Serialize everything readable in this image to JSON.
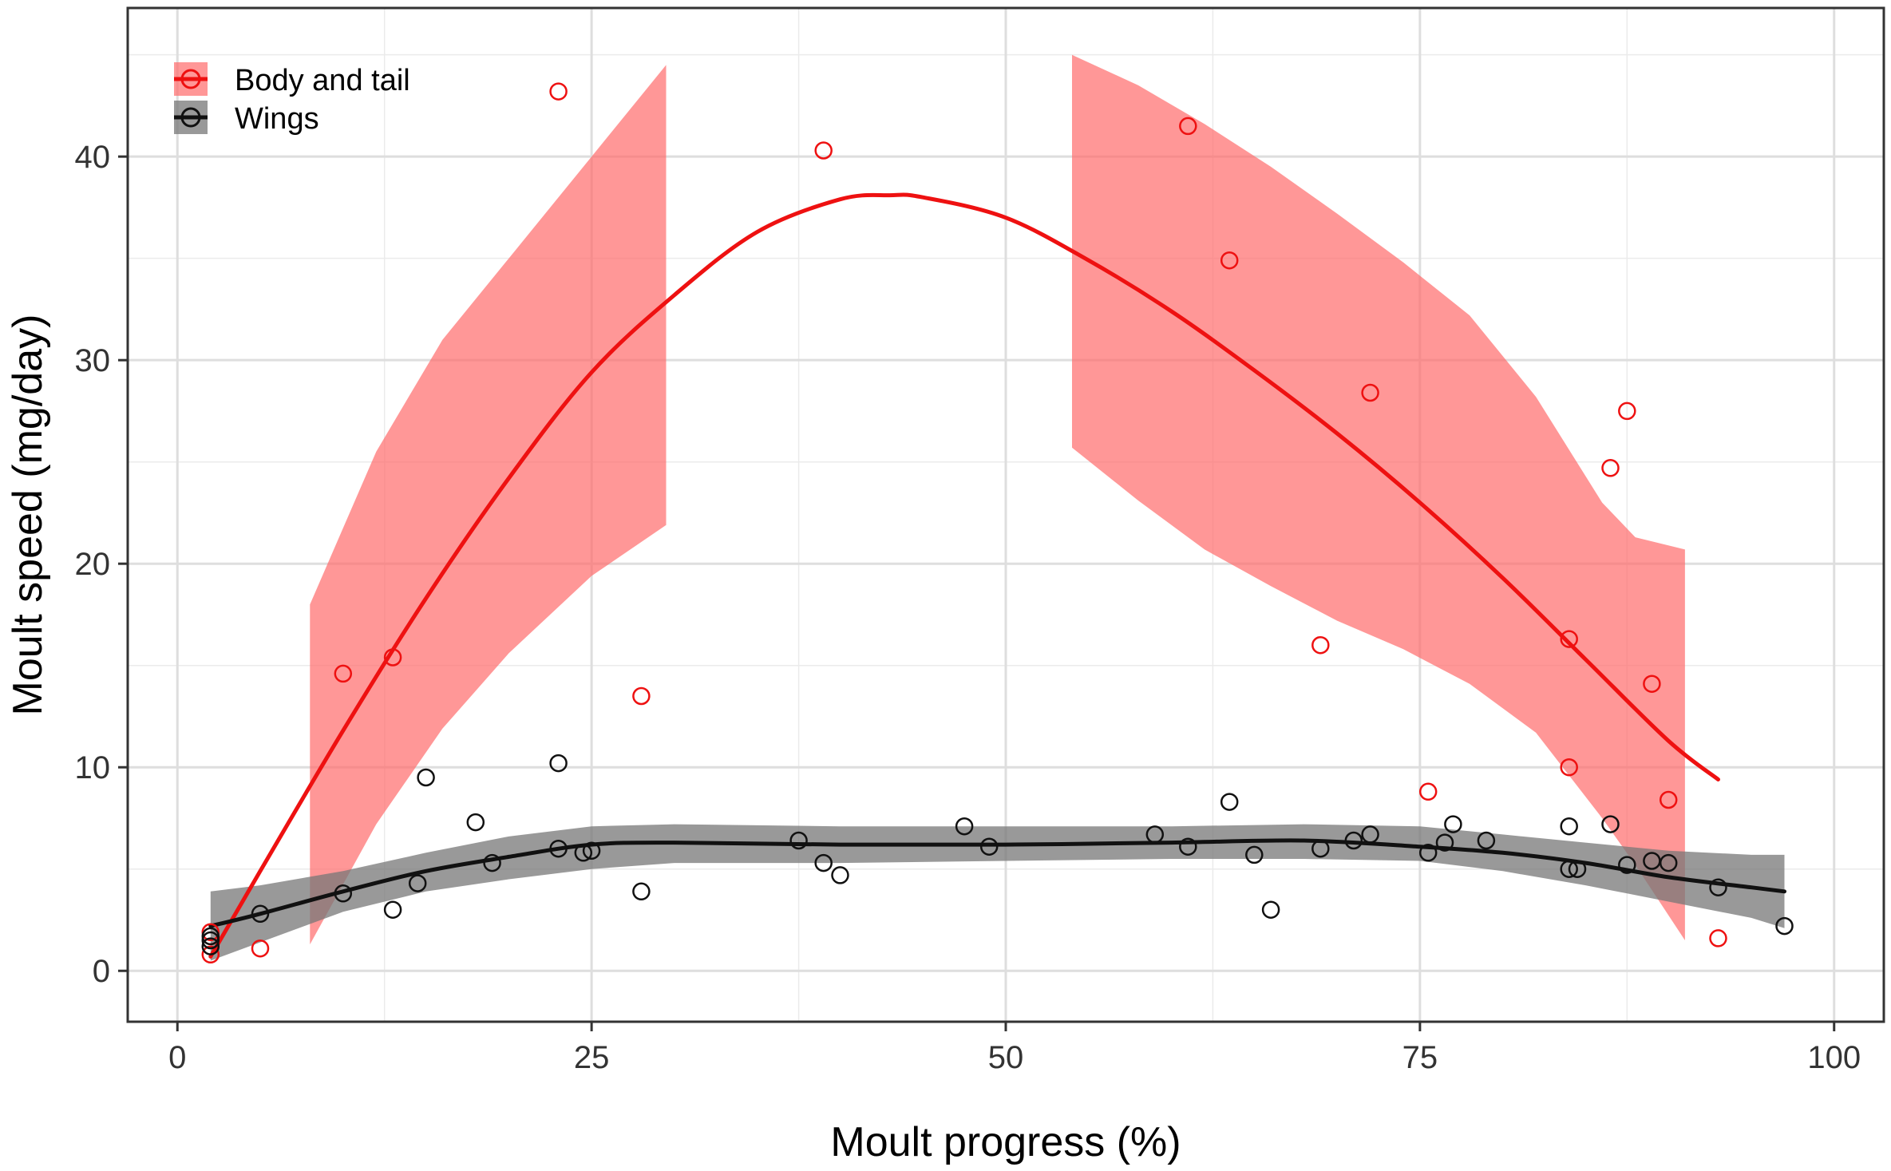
{
  "chart_data": {
    "type": "scatter",
    "xlabel": "Moult progress (%)",
    "ylabel": "Moult speed (mg/day)",
    "xlim": [
      -3,
      103
    ],
    "ylim": [
      -2.5,
      47.3
    ],
    "x_ticks": [
      0,
      25,
      50,
      75,
      100
    ],
    "y_ticks": [
      0,
      10,
      20,
      30,
      40
    ],
    "x_tick_labels": [
      "0",
      "25",
      "50",
      "75",
      "100"
    ],
    "y_tick_labels": [
      "0",
      "10",
      "20",
      "30",
      "40"
    ],
    "grid": true,
    "legend_position": "top-left",
    "series": [
      {
        "name": "Body and tail",
        "color": "#ee1111",
        "ribbon_color": "#ff6b6b",
        "points": [
          [
            2,
            0.8
          ],
          [
            2,
            1.9
          ],
          [
            5,
            1.1
          ],
          [
            10,
            14.6
          ],
          [
            13,
            15.4
          ],
          [
            23,
            43.2
          ],
          [
            28,
            13.5
          ],
          [
            39,
            40.3
          ],
          [
            61,
            41.5
          ],
          [
            63.5,
            34.9
          ],
          [
            69,
            16
          ],
          [
            72,
            28.4
          ],
          [
            75.5,
            8.8
          ],
          [
            84,
            16.3
          ],
          [
            84,
            10
          ],
          [
            86.5,
            24.7
          ],
          [
            87.5,
            27.5
          ],
          [
            89,
            14.1
          ],
          [
            90,
            8.4
          ],
          [
            93,
            1.6
          ]
        ],
        "fit": [
          [
            2,
            0.7
          ],
          [
            5,
            4.9
          ],
          [
            10,
            11.8
          ],
          [
            15,
            18.3
          ],
          [
            20,
            24.2
          ],
          [
            25,
            29.4
          ],
          [
            30,
            33.2
          ],
          [
            35,
            36.3
          ],
          [
            40,
            37.9
          ],
          [
            43,
            38.1
          ],
          [
            45,
            38
          ],
          [
            50,
            37
          ],
          [
            55,
            34.9
          ],
          [
            60,
            32.4
          ],
          [
            65,
            29.5
          ],
          [
            70,
            26.4
          ],
          [
            75,
            23
          ],
          [
            80,
            19.3
          ],
          [
            85,
            15.3
          ],
          [
            90,
            11.3
          ],
          [
            93,
            9.4
          ]
        ],
        "ribbons": [
          {
            "x": [
              8,
              12,
              16,
              20,
              25,
              29.5
            ],
            "lower": [
              1.3,
              7.2,
              11.9,
              15.6,
              19.4,
              21.9
            ],
            "upper": [
              18,
              25.5,
              31,
              35,
              40,
              44.5
            ]
          },
          {
            "x": [
              54,
              58,
              62,
              66,
              70,
              74,
              78,
              82,
              86,
              88,
              91
            ],
            "lower": [
              25.7,
              23.1,
              20.7,
              18.9,
              17.2,
              15.8,
              14.1,
              11.7,
              7.5,
              5.2,
              1.5
            ],
            "upper": [
              45,
              43.5,
              41.6,
              39.5,
              37.2,
              34.8,
              32.2,
              28.2,
              23,
              21.3,
              20.7
            ]
          }
        ]
      },
      {
        "name": "Wings",
        "color": "#111111",
        "ribbon_color": "#777777",
        "points": [
          [
            2,
            1.2
          ],
          [
            2,
            1.5
          ],
          [
            2,
            1.7
          ],
          [
            5,
            2.8
          ],
          [
            10,
            3.8
          ],
          [
            13,
            3
          ],
          [
            14.5,
            4.3
          ],
          [
            15,
            9.5
          ],
          [
            18,
            7.3
          ],
          [
            19,
            5.3
          ],
          [
            23,
            10.2
          ],
          [
            23,
            6
          ],
          [
            24.5,
            5.8
          ],
          [
            25,
            5.9
          ],
          [
            28,
            3.9
          ],
          [
            37.5,
            6.4
          ],
          [
            39,
            5.3
          ],
          [
            40,
            4.7
          ],
          [
            47.5,
            7.1
          ],
          [
            49,
            6.1
          ],
          [
            59,
            6.7
          ],
          [
            61,
            6.1
          ],
          [
            63.5,
            8.3
          ],
          [
            65,
            5.7
          ],
          [
            66,
            3
          ],
          [
            69,
            6
          ],
          [
            71,
            6.4
          ],
          [
            72,
            6.7
          ],
          [
            75.5,
            5.8
          ],
          [
            76.5,
            6.3
          ],
          [
            77,
            7.2
          ],
          [
            79,
            6.4
          ],
          [
            84,
            5
          ],
          [
            84,
            7.1
          ],
          [
            84.5,
            5
          ],
          [
            86.5,
            7.2
          ],
          [
            87.5,
            5.2
          ],
          [
            89,
            5.4
          ],
          [
            90,
            5.3
          ],
          [
            93,
            4.1
          ],
          [
            97,
            2.2
          ]
        ],
        "fit": [
          [
            2,
            2.2
          ],
          [
            5,
            2.8
          ],
          [
            10,
            3.9
          ],
          [
            15,
            4.9
          ],
          [
            20,
            5.6
          ],
          [
            25,
            6.2
          ],
          [
            30,
            6.3
          ],
          [
            40,
            6.2
          ],
          [
            50,
            6.2
          ],
          [
            60,
            6.3
          ],
          [
            68,
            6.4
          ],
          [
            75,
            6.1
          ],
          [
            80,
            5.8
          ],
          [
            85,
            5.3
          ],
          [
            90,
            4.6
          ],
          [
            95,
            4.1
          ],
          [
            97,
            3.9
          ]
        ],
        "ribbons": [
          {
            "x": [
              2,
              5,
              10,
              15,
              20,
              25,
              30,
              40,
              50,
              60,
              68,
              75,
              80,
              85,
              90,
              95,
              97
            ],
            "lower": [
              0.5,
              1.4,
              2.9,
              3.9,
              4.5,
              5,
              5.3,
              5.3,
              5.4,
              5.5,
              5.5,
              5.4,
              4.9,
              4.2,
              3.4,
              2.6,
              2.1
            ],
            "upper": [
              3.9,
              4.2,
              4.9,
              5.8,
              6.6,
              7.1,
              7.2,
              7.1,
              7.1,
              7.1,
              7.2,
              7.1,
              6.7,
              6.3,
              5.9,
              5.7,
              5.7
            ]
          }
        ]
      }
    ]
  }
}
